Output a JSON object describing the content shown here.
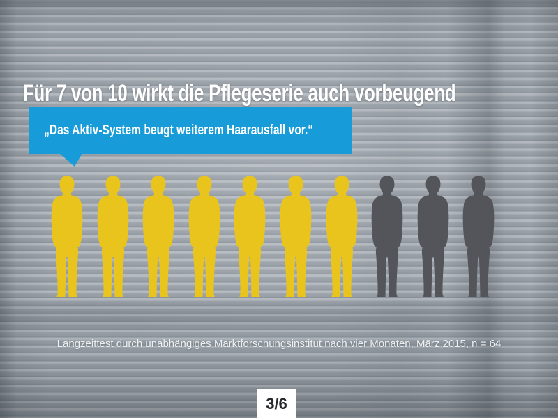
{
  "slide": {
    "headline": "Für 7 von 10 wirkt die Pflegeserie auch vorbeugend",
    "bubble_quote": "„Das Aktiv-System beugt weiterem Haarausfall vor.“",
    "source_note": "Langzeittest durch unabhängiges Marktforschungsinstitut nach vier Monaten, März 2015, n = 64",
    "page_indicator": "3/6"
  },
  "colors": {
    "bubble_bg": "#189cd9",
    "headline_text": "#ffffff",
    "figure_positive": "#e9c41c",
    "figure_negative": "#54555a",
    "page_box_bg": "#ffffff",
    "page_box_text": "#26282b",
    "background_base": "#99a1a8"
  },
  "chart_data": {
    "type": "pictogram",
    "title": "Für 7 von 10 wirkt die Pflegeserie auch vorbeugend",
    "icon": "man-silhouette",
    "total_icons": 10,
    "highlighted_icons": 7,
    "categories": [
      "highlighted",
      "muted"
    ],
    "values": [
      7,
      3
    ],
    "highlight_color": "#e9c41c",
    "muted_color": "#54555a",
    "annotation": "„Das Aktiv-System beugt weiterem Haarausfall vor.“",
    "source": "Langzeittest durch unabhängiges Marktforschungsinstitut nach vier Monaten, März 2015, n = 64",
    "legend_position": "none",
    "page_indicator": "3/6"
  }
}
